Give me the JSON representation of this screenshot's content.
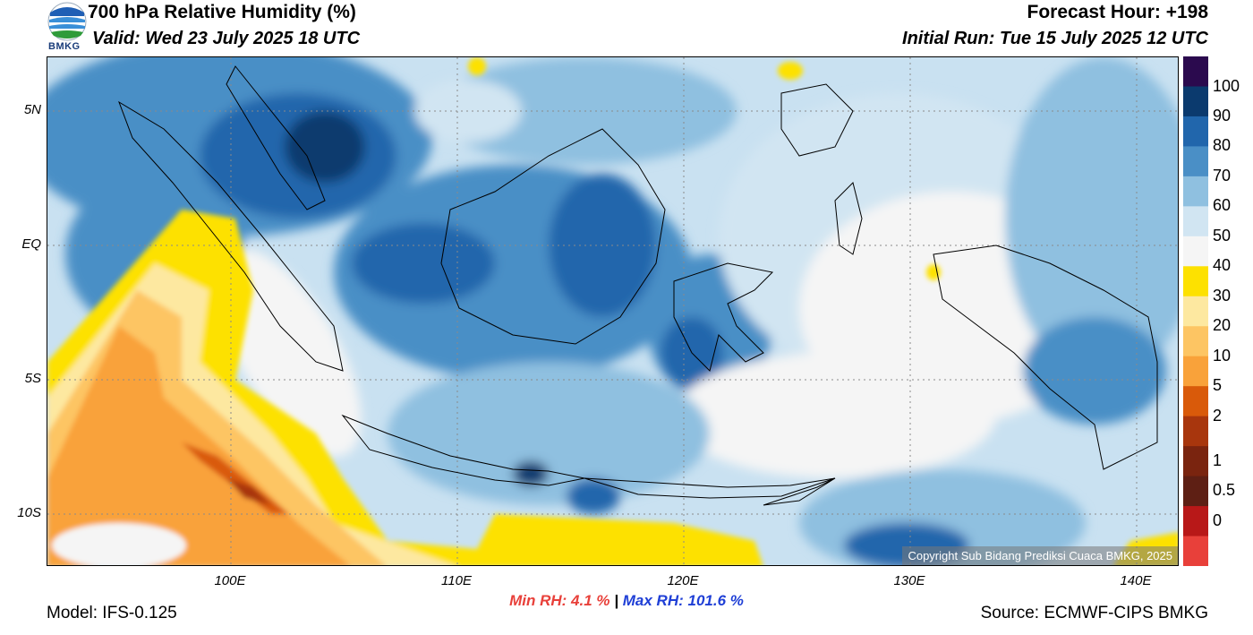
{
  "header": {
    "title": "700 hPa Relative Humidity (%)",
    "valid": "Valid: Wed 23 July 2025 18 UTC",
    "forecast_hour": "Forecast Hour: +198",
    "initial_run": "Initial Run: Tue 15 July 2025 12 UTC",
    "logo_text": "BMKG"
  },
  "map": {
    "lat_labels": [
      "5N",
      "EQ",
      "5S",
      "10S"
    ],
    "lon_labels": [
      "100E",
      "110E",
      "120E",
      "130E",
      "140E"
    ],
    "copyright": "Copyright Sub Bidang Prediksi Cuaca BMKG, 2025"
  },
  "stats": {
    "min_label": "Min RH:",
    "min_value": "4.1 %",
    "separator": "|",
    "max_label": "Max RH: 101.6 %"
  },
  "footer": {
    "model": "Model: IFS-0.125",
    "source": "Source: ECMWF-CIPS BMKG"
  },
  "colorbar": {
    "labels": [
      "100",
      "90",
      "80",
      "70",
      "60",
      "50",
      "40",
      "30",
      "20",
      "10",
      "5",
      "2",
      "1",
      "0.5",
      "0"
    ],
    "colors": [
      "#2b0a4e",
      "#0b3a6e",
      "#2166ac",
      "#4a8fc6",
      "#8fc0e0",
      "#d1e5f2",
      "#f5f5f5",
      "#fde100",
      "#fde8a0",
      "#fdc563",
      "#f9a23a",
      "#d95a0a",
      "#a8360d",
      "#7a240f",
      "#5e1f14",
      "#b81818",
      "#e8403a"
    ]
  },
  "colors": {
    "min_color": "#e8403a",
    "max_color": "#1f3fd6",
    "ocean_mid": "#c9e1f1"
  }
}
